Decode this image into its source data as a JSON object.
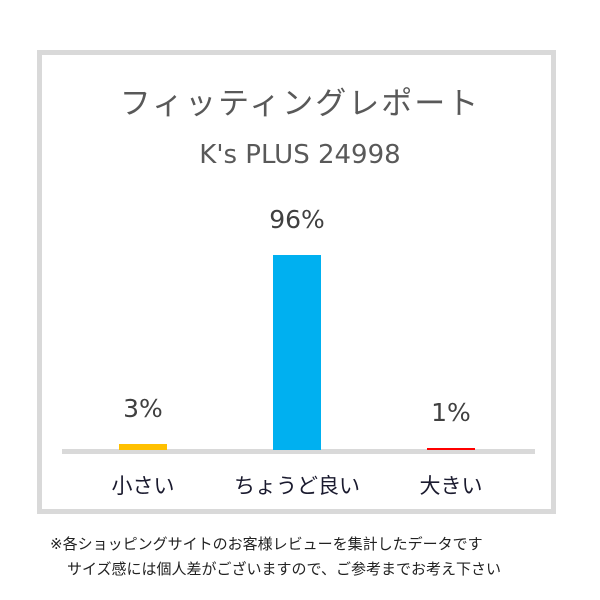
{
  "chart_data": {
    "type": "bar",
    "title": "フィッティングレポート",
    "subtitle": "K's PLUS 24998",
    "categories": [
      "小さい",
      "ちょうど良い",
      "大きい"
    ],
    "values": [
      3,
      96,
      1
    ],
    "data_labels": [
      "3%",
      "96%",
      "1%"
    ],
    "colors": [
      "#ffc000",
      "#00b0f0",
      "#ff0000"
    ],
    "ylim": [
      0,
      100
    ],
    "grid": false
  },
  "footnote": [
    "※各ショッピングサイトのお客様レビューを集計したデータです",
    "サイズ感には個人差がございますので、ご参考までお考え下さい"
  ]
}
